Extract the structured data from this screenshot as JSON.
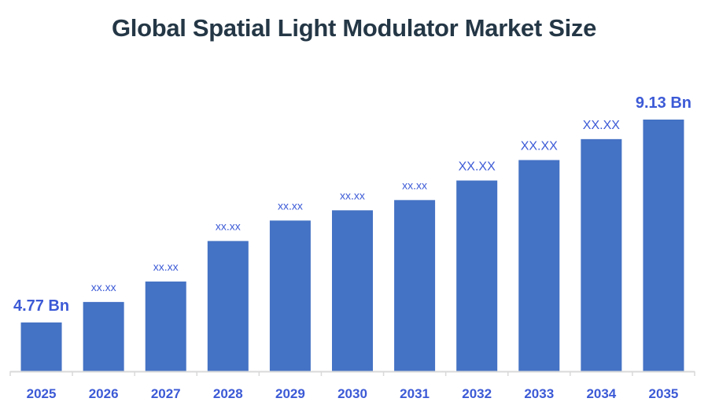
{
  "chart_data": {
    "type": "bar",
    "title": "Global Spatial Light Modulator Market Size",
    "xlabel": "",
    "ylabel": "",
    "categories": [
      "2025",
      "2026",
      "2027",
      "2028",
      "2029",
      "2030",
      "2031",
      "2032",
      "2033",
      "2034",
      "2035"
    ],
    "values": [
      4.77,
      5.21,
      5.65,
      6.52,
      6.96,
      7.18,
      7.4,
      7.82,
      8.26,
      8.71,
      9.13
    ],
    "data_labels": [
      "4.77 Bn",
      "xx.xx",
      "xx.xx",
      "xx.xx",
      "xx.xx",
      "xx.xx",
      "xx.xx",
      "XX.XX",
      "XX.XX",
      "XX.XX",
      "9.13 Bn"
    ],
    "ylim": [
      3.72,
      9.13
    ],
    "grid": false,
    "legend": "none",
    "colors": {
      "bar": "#4472c4",
      "label": "#3c5ad6",
      "title": "#243746",
      "axis": "#d9d9d9"
    }
  }
}
